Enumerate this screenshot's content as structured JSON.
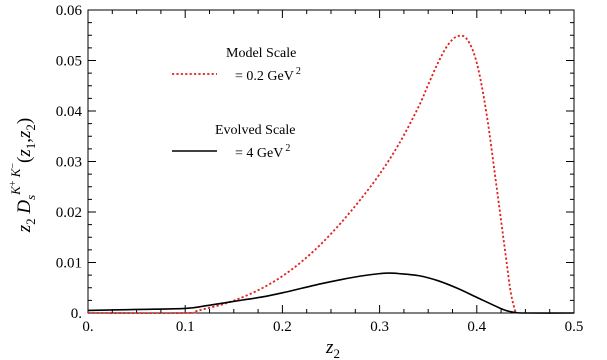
{
  "chart_data": {
    "type": "line",
    "title": "",
    "xlabel": "z₂",
    "ylabel": "z₂ D_s^{K⁺K⁻}(z₁,z₂)",
    "xlim": [
      0,
      0.5
    ],
    "ylim": [
      0,
      0.06
    ],
    "x_ticks": [
      0,
      0.1,
      0.2,
      0.3,
      0.4,
      0.5
    ],
    "x_tick_labels": [
      "0.",
      "0.1",
      "0.2",
      "0.3",
      "0.4",
      "0.5"
    ],
    "y_ticks": [
      0,
      0.01,
      0.02,
      0.03,
      0.04,
      0.05,
      0.06
    ],
    "y_tick_labels": [
      "0.",
      "0.01",
      "0.02",
      "0.03",
      "0.04",
      "0.05",
      "0.06"
    ],
    "grid": false,
    "legend_position": "top-left",
    "series": [
      {
        "name": "Model Scale = 0.2 GeV²",
        "legend_line1": "Model Scale",
        "legend_line2": "= 0.2 GeV",
        "legend_sup": "2",
        "color": "#e0201c",
        "style": "dotted",
        "x": [
          0.0,
          0.1,
          0.11,
          0.12,
          0.14,
          0.16,
          0.18,
          0.2,
          0.22,
          0.24,
          0.26,
          0.28,
          0.3,
          0.32,
          0.34,
          0.35,
          0.36,
          0.37,
          0.38,
          0.39,
          0.4,
          0.41,
          0.42,
          0.43,
          0.435,
          0.44
        ],
        "y": [
          0.0,
          0.0,
          0.0003,
          0.0008,
          0.0018,
          0.0032,
          0.005,
          0.0073,
          0.0102,
          0.0137,
          0.0178,
          0.0224,
          0.0275,
          0.0335,
          0.0408,
          0.0452,
          0.0495,
          0.053,
          0.0548,
          0.0542,
          0.0495,
          0.0395,
          0.0255,
          0.011,
          0.004,
          0.0
        ]
      },
      {
        "name": "Evolved Scale = 4 GeV²",
        "legend_line1": "Evolved Scale",
        "legend_line2": "= 4 GeV",
        "legend_sup": "2",
        "color": "#000000",
        "style": "solid",
        "x": [
          0.0,
          0.05,
          0.1,
          0.12,
          0.14,
          0.16,
          0.18,
          0.2,
          0.22,
          0.24,
          0.26,
          0.28,
          0.3,
          0.31,
          0.32,
          0.34,
          0.36,
          0.38,
          0.4,
          0.42,
          0.43,
          0.44,
          0.45,
          0.5
        ],
        "y": [
          0.0005,
          0.0007,
          0.0009,
          0.0014,
          0.002,
          0.0026,
          0.0032,
          0.004,
          0.0049,
          0.0058,
          0.0066,
          0.0073,
          0.0078,
          0.0079,
          0.0078,
          0.0074,
          0.0064,
          0.0049,
          0.0031,
          0.0013,
          0.0005,
          0.0001,
          0.0,
          0.0
        ]
      }
    ]
  }
}
